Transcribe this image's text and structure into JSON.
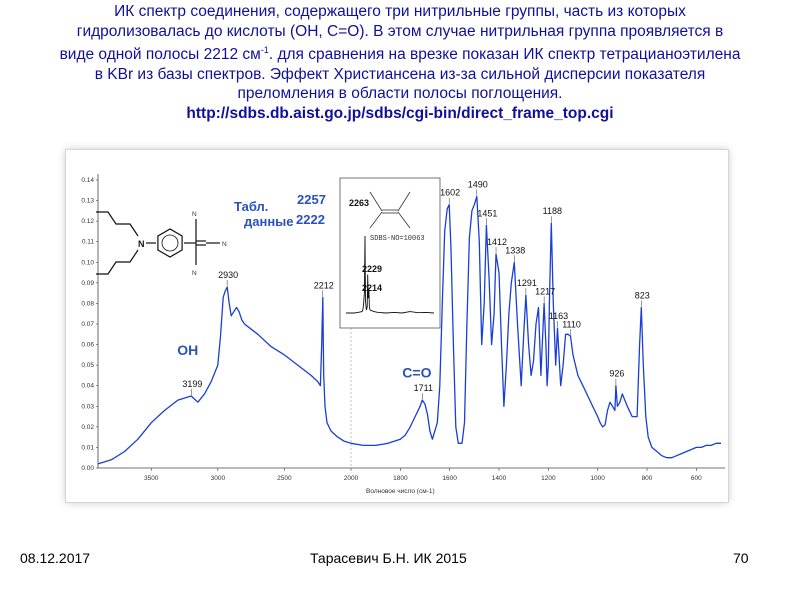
{
  "heading": {
    "line1": "ИК спектр соединения, содержащего три нитрильные группы, часть из которых",
    "line2": "гидролизовалась до кислоты (OH, C=O). В этом случае нитрильная группа проявляется в",
    "line3a": "виде одной полосы 2212 см",
    "line3sup": "-1",
    "line3b": ". для сравнения на врезке показан ИК спектр тетрацианоэтилена",
    "line4": "в KBr из базы спектров. Эффект Христиансена из-за сильной дисперсии показателя",
    "line5": "преломления в области полосы поглощения.",
    "url": "http://sdbs.db.aist.go.jp/sdbs/cgi-bin/direct_frame_top.cgi"
  },
  "footer": {
    "date": "08.12.2017",
    "author": "Тарасевич Б.Н.  ИК 2015",
    "page": "70"
  },
  "colors": {
    "spectrum": "#1a3fd6",
    "heading": "#10109a",
    "annotation": "#2a52be"
  },
  "chart_data": {
    "type": "line",
    "xlabel": "Волновое число (см-1)",
    "ylabel": "",
    "x_reversed": true,
    "xlim": [
      3900,
      500
    ],
    "ylim": [
      0,
      0.14
    ],
    "x_ticks": [
      3500,
      3000,
      2500,
      2000,
      1800,
      1600,
      1400,
      1200,
      1000,
      800,
      600
    ],
    "y_ticks": [
      "0.00",
      "0.01",
      "0.02",
      "0.03",
      "0.04",
      "0.05",
      "0.06",
      "0.07",
      "0.08",
      "0.09",
      "0.10",
      "0.11",
      "0.12",
      "0.13",
      "0.14"
    ],
    "series": [
      {
        "x": [
          3900,
          3800,
          3700,
          3600,
          3500,
          3400,
          3300,
          3200,
          3150,
          3100,
          3050,
          3000,
          2980,
          2960,
          2945,
          2930,
          2915,
          2900,
          2880,
          2860,
          2840,
          2820,
          2800,
          2700,
          2600,
          2500,
          2400,
          2300,
          2250,
          2230,
          2220,
          2212,
          2205,
          2195,
          2180,
          2150,
          2100,
          2050,
          2000,
          1950,
          1900,
          1850,
          1800,
          1780,
          1760,
          1740,
          1720,
          1711,
          1700,
          1690,
          1680,
          1670,
          1650,
          1640,
          1630,
          1620,
          1610,
          1602,
          1595,
          1585,
          1575,
          1565,
          1550,
          1540,
          1530,
          1520,
          1510,
          1500,
          1490,
          1480,
          1470,
          1460,
          1451,
          1440,
          1430,
          1420,
          1412,
          1400,
          1390,
          1380,
          1370,
          1360,
          1350,
          1338,
          1325,
          1310,
          1300,
          1291,
          1280,
          1270,
          1260,
          1250,
          1240,
          1230,
          1217,
          1210,
          1205,
          1200,
          1195,
          1188,
          1180,
          1170,
          1163,
          1150,
          1140,
          1130,
          1120,
          1110,
          1100,
          1080,
          1060,
          1040,
          1020,
          1000,
          990,
          980,
          970,
          960,
          950,
          940,
          930,
          926,
          920,
          910,
          900,
          880,
          860,
          840,
          830,
          823,
          815,
          805,
          795,
          780,
          760,
          740,
          720,
          700,
          680,
          660,
          640,
          620,
          600,
          580,
          560,
          540,
          520,
          500
        ],
        "y": [
          0.002,
          0.004,
          0.008,
          0.014,
          0.022,
          0.028,
          0.033,
          0.035,
          0.032,
          0.036,
          0.042,
          0.05,
          0.064,
          0.083,
          0.086,
          0.088,
          0.08,
          0.074,
          0.076,
          0.078,
          0.076,
          0.072,
          0.07,
          0.065,
          0.059,
          0.055,
          0.05,
          0.045,
          0.042,
          0.04,
          0.06,
          0.083,
          0.045,
          0.03,
          0.022,
          0.018,
          0.015,
          0.013,
          0.012,
          0.011,
          0.011,
          0.012,
          0.014,
          0.016,
          0.02,
          0.025,
          0.03,
          0.033,
          0.031,
          0.026,
          0.018,
          0.014,
          0.022,
          0.04,
          0.08,
          0.115,
          0.126,
          0.128,
          0.108,
          0.06,
          0.02,
          0.012,
          0.012,
          0.022,
          0.07,
          0.112,
          0.125,
          0.128,
          0.132,
          0.11,
          0.06,
          0.08,
          0.118,
          0.092,
          0.06,
          0.075,
          0.104,
          0.095,
          0.06,
          0.03,
          0.05,
          0.075,
          0.09,
          0.1,
          0.07,
          0.04,
          0.065,
          0.084,
          0.06,
          0.045,
          0.052,
          0.07,
          0.078,
          0.045,
          0.08,
          0.06,
          0.04,
          0.05,
          0.085,
          0.119,
          0.08,
          0.05,
          0.068,
          0.04,
          0.05,
          0.065,
          0.065,
          0.064,
          0.055,
          0.045,
          0.04,
          0.035,
          0.03,
          0.025,
          0.022,
          0.02,
          0.021,
          0.028,
          0.032,
          0.03,
          0.028,
          0.04,
          0.03,
          0.032,
          0.036,
          0.03,
          0.025,
          0.025,
          0.06,
          0.078,
          0.05,
          0.025,
          0.015,
          0.01,
          0.008,
          0.006,
          0.005,
          0.005,
          0.006,
          0.007,
          0.008,
          0.009,
          0.01,
          0.01,
          0.011,
          0.011,
          0.012,
          0.012
        ]
      }
    ],
    "peak_labels": [
      {
        "text": "3199",
        "x": 3199,
        "y": 0.035
      },
      {
        "text": "2930",
        "x": 2930,
        "y": 0.088
      },
      {
        "text": "2212",
        "x": 2212,
        "y": 0.083
      },
      {
        "text": "1711",
        "x": 1711,
        "y": 0.033
      },
      {
        "text": "1602",
        "x": 1602,
        "y": 0.128
      },
      {
        "text": "1490",
        "x": 1490,
        "y": 0.132
      },
      {
        "text": "1451",
        "x": 1451,
        "y": 0.118
      },
      {
        "text": "1412",
        "x": 1412,
        "y": 0.104
      },
      {
        "text": "1338",
        "x": 1338,
        "y": 0.1
      },
      {
        "text": "1291",
        "x": 1291,
        "y": 0.084
      },
      {
        "text": "1217",
        "x": 1217,
        "y": 0.08
      },
      {
        "text": "1188",
        "x": 1188,
        "y": 0.119
      },
      {
        "text": "1163",
        "x": 1163,
        "y": 0.068
      },
      {
        "text": "1110",
        "x": 1110,
        "y": 0.064
      },
      {
        "text": "926",
        "x": 926,
        "y": 0.04
      },
      {
        "text": "823",
        "x": 823,
        "y": 0.078
      }
    ],
    "group_labels": {
      "oh": "OH",
      "co": "C=O"
    },
    "table_label": {
      "line1": "Табл.",
      "line2": "данные",
      "v1": "2257",
      "v2": "2222"
    },
    "inset": {
      "code": "SDBS-NO=10063",
      "peaks": [
        "2263",
        "2229",
        "2214"
      ],
      "x": [
        2500,
        2400,
        2350,
        2300,
        2290,
        2280,
        2270,
        2263,
        2256,
        2245,
        2235,
        2229,
        2222,
        2214,
        2208,
        2200,
        2150,
        2100,
        2000,
        1900,
        1800,
        1700,
        1600,
        1500,
        1400
      ],
      "y": [
        0.01,
        0.01,
        0.012,
        0.015,
        0.02,
        0.04,
        0.08,
        0.27,
        0.05,
        0.02,
        0.03,
        0.14,
        0.06,
        0.09,
        0.03,
        0.02,
        0.015,
        0.012,
        0.01,
        0.012,
        0.01,
        0.015,
        0.011,
        0.012,
        0.01
      ]
    }
  }
}
